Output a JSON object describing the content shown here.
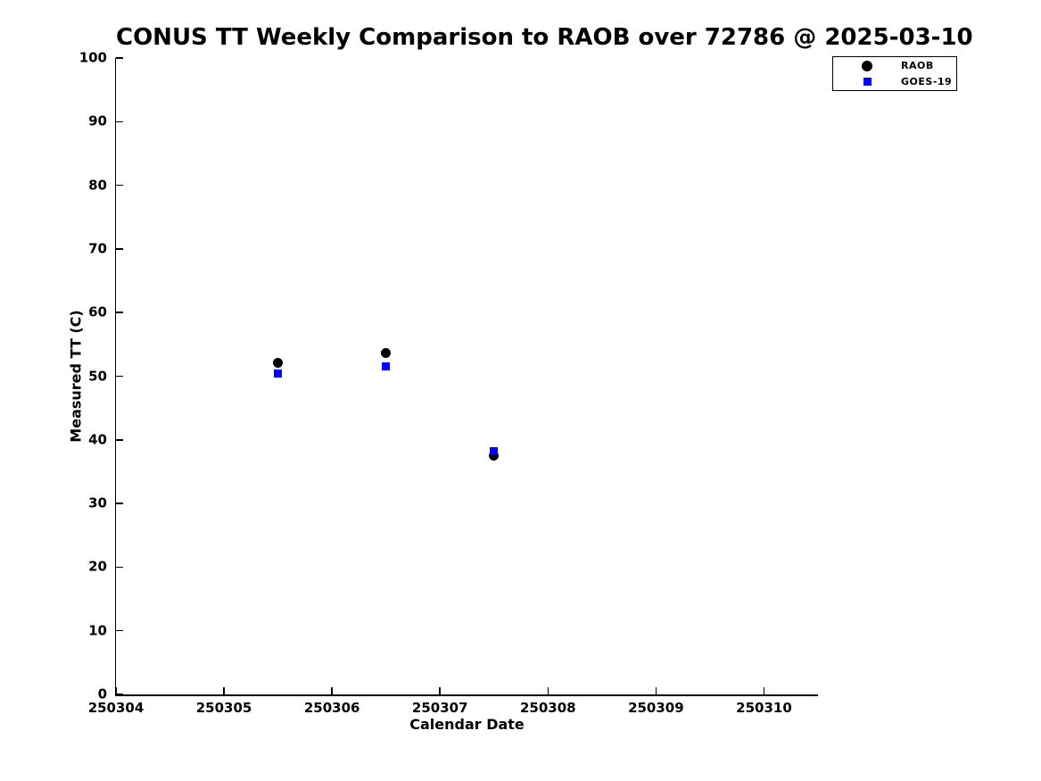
{
  "chart_data": {
    "type": "scatter",
    "title": "CONUS TT Weekly Comparison to RAOB over 72786 @ 2025-03-10",
    "xlabel": "Calendar Date",
    "ylabel": "Measured TT (C)",
    "xlim": [
      250304,
      250310.5
    ],
    "ylim": [
      0,
      100
    ],
    "x_ticks": [
      250304,
      250305,
      250306,
      250307,
      250308,
      250309,
      250310
    ],
    "y_ticks": [
      0,
      10,
      20,
      30,
      40,
      50,
      60,
      70,
      80,
      90,
      100
    ],
    "grid": false,
    "legend_position": "upper right",
    "series": [
      {
        "name": "RAOB",
        "marker": "circle",
        "color": "#000000",
        "x": [
          250305.5,
          250306.5,
          250307.5
        ],
        "y": [
          52.1,
          53.6,
          37.5
        ]
      },
      {
        "name": "GOES-19",
        "marker": "square",
        "color": "#0000ff",
        "x": [
          250305.5,
          250306.5,
          250307.5
        ],
        "y": [
          50.4,
          51.5,
          38.2
        ]
      }
    ]
  }
}
